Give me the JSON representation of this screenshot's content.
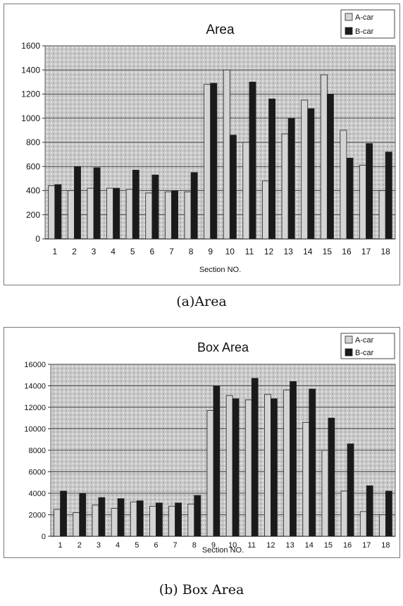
{
  "charts": [
    {
      "id": "a",
      "caption": "(a)Area",
      "chart_data": {
        "type": "bar",
        "title": "Area",
        "xlabel": "Section NO.",
        "ylabel": "",
        "ylim": [
          0,
          1600
        ],
        "yticks": [
          0,
          200,
          400,
          600,
          800,
          1000,
          1200,
          1400,
          1600
        ],
        "grid": true,
        "legend_position": "top-right",
        "categories": [
          "1",
          "2",
          "3",
          "4",
          "5",
          "6",
          "7",
          "8",
          "9",
          "10",
          "11",
          "12",
          "13",
          "14",
          "15",
          "16",
          "17",
          "18"
        ],
        "series": [
          {
            "name": "A-car",
            "color": "#d4d4d4",
            "values": [
              440,
              400,
              420,
              420,
              410,
              380,
              390,
              390,
              1280,
              1400,
              800,
              480,
              870,
              1150,
              1360,
              900,
              610,
              400
            ]
          },
          {
            "name": "B-car",
            "color": "#1a1a1a",
            "values": [
              450,
              600,
              590,
              420,
              570,
              530,
              400,
              550,
              1290,
              860,
              1300,
              1160,
              1000,
              1080,
              1200,
              670,
              790,
              720
            ]
          }
        ]
      }
    },
    {
      "id": "b",
      "caption": "(b) Box Area",
      "chart_data": {
        "type": "bar",
        "title": "Box Area",
        "xlabel": "Section NO.",
        "ylabel": "",
        "ylim": [
          0,
          16000
        ],
        "yticks": [
          0,
          2000,
          4000,
          6000,
          8000,
          10000,
          12000,
          14000,
          16000
        ],
        "grid": true,
        "legend_position": "top-right",
        "categories": [
          "1",
          "2",
          "3",
          "4",
          "5",
          "6",
          "7",
          "8",
          "9",
          "10",
          "11",
          "12",
          "13",
          "14",
          "15",
          "16",
          "17",
          "18"
        ],
        "series": [
          {
            "name": "A-car",
            "color": "#d4d4d4",
            "values": [
              2500,
              2200,
              2900,
              2600,
              3200,
              2800,
              2800,
              3000,
              11700,
              13100,
              12700,
              13200,
              13600,
              10600,
              8000,
              4200,
              2300,
              2000
            ]
          },
          {
            "name": "B-car",
            "color": "#1a1a1a",
            "values": [
              4200,
              4000,
              3600,
              3500,
              3300,
              3100,
              3100,
              3800,
              14000,
              12800,
              14700,
              12800,
              14400,
              13700,
              11000,
              8600,
              4700,
              4200
            ]
          }
        ]
      }
    }
  ]
}
